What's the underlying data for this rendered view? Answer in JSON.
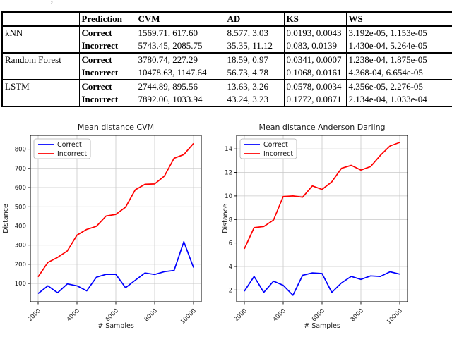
{
  "caption_artifact": ",",
  "table": {
    "headers": [
      "",
      "Prediction",
      "CVM",
      "AD",
      "KS",
      "WS"
    ],
    "groups": [
      {
        "model": "kNN",
        "rows": [
          {
            "prediction": "Correct",
            "cvm": "1569.71, 617.60",
            "ad": "8.577, 3.03",
            "ks": "0.0193, 0.0043",
            "ws": "3.192e-05, 1.153e-05"
          },
          {
            "prediction": "Incorrect",
            "cvm": "5743.45, 2085.75",
            "ad": "35.35, 11.12",
            "ks": "0.083, 0.0139",
            "ws": "1.430e-04, 5.264e-05"
          }
        ]
      },
      {
        "model": "Random Forest",
        "rows": [
          {
            "prediction": "Correct",
            "cvm": "3780.74, 227.29",
            "ad": "18.59, 0.97",
            "ks": "0.0341, 0.0007",
            "ws": "1.238e-04, 1.875e-05"
          },
          {
            "prediction": "Incorrect",
            "cvm": "10478.63, 1147.64",
            "ad": "56.73, 4.78",
            "ks": "0.1068, 0.0161",
            "ws": "4.368-04, 6.654e-05"
          }
        ]
      },
      {
        "model": "LSTM",
        "rows": [
          {
            "prediction": "Correct",
            "cvm": "2744.89, 895.56",
            "ad": "13.63, 3.26",
            "ks": "0.0578, 0.0034",
            "ws": "4.356e-05, 2.276-05"
          },
          {
            "prediction": "Incorrect",
            "cvm": "7892.06, 1033.94",
            "ad": "43.24, 3.23",
            "ks": "0.1772, 0.0871",
            "ws": "2.134e-04, 1.033e-04"
          }
        ]
      }
    ]
  },
  "chart_data": [
    {
      "type": "line",
      "title": "Mean distance CVM",
      "xlabel": "# Samples",
      "ylabel": "Distance",
      "grid": true,
      "legend_position": "upper-left",
      "x": [
        2000,
        2500,
        3000,
        3500,
        4000,
        4500,
        5000,
        5500,
        6000,
        6500,
        7000,
        7500,
        8000,
        8500,
        9000,
        9500,
        10000
      ],
      "xticks": [
        2000,
        4000,
        6000,
        8000,
        10000
      ],
      "yticks": [
        100,
        200,
        300,
        400,
        500,
        600,
        700,
        800
      ],
      "xlim": [
        1600,
        10400
      ],
      "ylim": [
        5,
        872
      ],
      "series": [
        {
          "name": "Correct",
          "color": "#0000ff",
          "values": [
            48,
            88,
            52,
            98,
            88,
            62,
            133,
            148,
            148,
            78,
            117,
            155,
            147,
            162,
            168,
            318,
            183
          ]
        },
        {
          "name": "Incorrect",
          "color": "#ff0000",
          "values": [
            135,
            210,
            236,
            270,
            352,
            382,
            398,
            452,
            460,
            498,
            588,
            617,
            619,
            660,
            753,
            772,
            830
          ]
        }
      ]
    },
    {
      "type": "line",
      "title": "Mean distance Anderson Darling",
      "xlabel": "# Samples",
      "ylabel": "Distance",
      "grid": true,
      "legend_position": "upper-left",
      "x": [
        2000,
        2500,
        3000,
        3500,
        4000,
        4500,
        5000,
        5500,
        6000,
        6500,
        7000,
        7500,
        8000,
        8500,
        9000,
        9500,
        10000
      ],
      "xticks": [
        2000,
        4000,
        6000,
        8000,
        10000
      ],
      "yticks": [
        2,
        4,
        6,
        8,
        10,
        12,
        14
      ],
      "xlim": [
        1600,
        10400
      ],
      "ylim": [
        1.0,
        15.15
      ],
      "series": [
        {
          "name": "Correct",
          "color": "#0000ff",
          "values": [
            1.9,
            3.15,
            1.8,
            2.75,
            2.4,
            1.55,
            3.25,
            3.45,
            3.4,
            1.8,
            2.6,
            3.15,
            2.9,
            3.2,
            3.15,
            3.55,
            3.35
          ]
        },
        {
          "name": "Incorrect",
          "color": "#ff0000",
          "values": [
            5.5,
            7.3,
            7.4,
            7.95,
            9.95,
            10.0,
            9.9,
            10.85,
            10.55,
            11.2,
            12.35,
            12.6,
            12.2,
            12.5,
            13.45,
            14.25,
            14.55
          ]
        }
      ]
    }
  ]
}
